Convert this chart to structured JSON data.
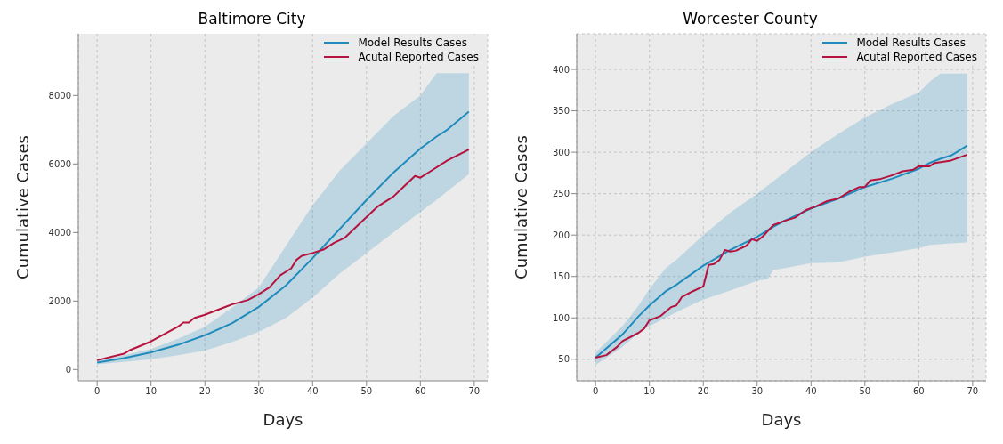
{
  "chart_data": [
    {
      "type": "line",
      "title": "Baltimore City",
      "xlabel": "Days",
      "ylabel": "Cumulative Cases",
      "xlim": [
        -3.5,
        72.5
      ],
      "ylim": [
        -330,
        9800
      ],
      "xticks": [
        0,
        10,
        20,
        30,
        40,
        50,
        60,
        70
      ],
      "yticks": [
        0,
        2000,
        4000,
        6000,
        8000
      ],
      "grid": "x",
      "legend": "top right",
      "series": [
        {
          "name": "Model Results Cases",
          "color": "#1f8bbd",
          "x": [
            0,
            5,
            10,
            15,
            20,
            25,
            30,
            35,
            40,
            45,
            50,
            55,
            60,
            63,
            65,
            69
          ],
          "values": [
            200,
            330,
            500,
            720,
            1000,
            1350,
            1830,
            2450,
            3250,
            4100,
            4950,
            5750,
            6450,
            6800,
            7000,
            7530
          ],
          "lower": [
            150,
            220,
            300,
            420,
            550,
            800,
            1100,
            1500,
            2100,
            2800,
            3400,
            4000,
            4600,
            4950,
            5200,
            5700
          ],
          "upper": [
            270,
            420,
            600,
            900,
            1250,
            1800,
            2400,
            3600,
            4800,
            5800,
            6600,
            7400,
            8000,
            8650,
            8650,
            8650
          ]
        },
        {
          "name": "Acutal Reported Cases",
          "color": "#b5123e",
          "x": [
            0,
            5,
            6,
            10,
            15,
            16,
            17,
            18,
            20,
            25,
            28,
            30,
            32,
            34,
            36,
            37,
            38,
            40,
            42,
            44,
            46,
            50,
            52,
            55,
            57,
            59,
            60,
            62,
            65,
            69
          ],
          "values": [
            270,
            460,
            560,
            820,
            1250,
            1370,
            1370,
            1500,
            1600,
            1900,
            2030,
            2200,
            2400,
            2750,
            2950,
            3200,
            3320,
            3400,
            3500,
            3700,
            3850,
            4450,
            4750,
            5050,
            5350,
            5650,
            5600,
            5800,
            6100,
            6420
          ]
        }
      ]
    },
    {
      "type": "line",
      "title": "Worcester County",
      "xlabel": "Days",
      "ylabel": "Cumulative Cases",
      "xlim": [
        -3.5,
        72.5
      ],
      "ylim": [
        24,
        443
      ],
      "xticks": [
        0,
        10,
        20,
        30,
        40,
        50,
        60,
        70
      ],
      "yticks": [
        50,
        100,
        150,
        200,
        250,
        300,
        350,
        400
      ],
      "grid": true,
      "legend": "top right",
      "series": [
        {
          "name": "Model Results Cases",
          "color": "#1f8bbd",
          "x": [
            0,
            5,
            8,
            10,
            13,
            15,
            20,
            25,
            30,
            32,
            33,
            35,
            40,
            45,
            50,
            55,
            60,
            62,
            64,
            66,
            69
          ],
          "values": [
            52,
            80,
            102,
            115,
            132,
            140,
            163,
            182,
            198,
            206,
            210,
            217,
            232,
            244,
            258,
            268,
            280,
            287,
            292,
            296,
            308
          ],
          "lower": [
            43,
            65,
            82,
            90,
            100,
            107,
            122,
            133,
            145,
            147,
            158,
            160,
            166,
            167,
            174,
            179,
            184,
            188,
            189,
            190,
            191
          ],
          "upper": [
            58,
            90,
            115,
            135,
            160,
            170,
            200,
            227,
            250,
            260,
            265,
            275,
            300,
            322,
            342,
            358,
            372,
            385,
            395,
            395,
            395
          ]
        },
        {
          "name": "Acutal Reported Cases",
          "color": "#b5123e",
          "x": [
            0,
            2,
            4,
            5,
            8,
            9,
            10,
            12,
            14,
            15,
            16,
            18,
            20,
            21,
            22,
            23,
            24,
            25,
            26,
            28,
            29,
            30,
            31,
            33,
            35,
            37,
            39,
            41,
            43,
            45,
            47,
            49,
            50,
            51,
            53,
            55,
            57,
            59,
            60,
            62,
            63,
            66,
            69
          ],
          "values": [
            52,
            55,
            65,
            72,
            82,
            87,
            97,
            102,
            113,
            115,
            125,
            132,
            138,
            164,
            165,
            170,
            182,
            180,
            181,
            187,
            195,
            193,
            198,
            212,
            217,
            221,
            230,
            235,
            241,
            244,
            252,
            258,
            258,
            266,
            268,
            272,
            277,
            279,
            283,
            283,
            287,
            290,
            297
          ]
        }
      ]
    }
  ]
}
